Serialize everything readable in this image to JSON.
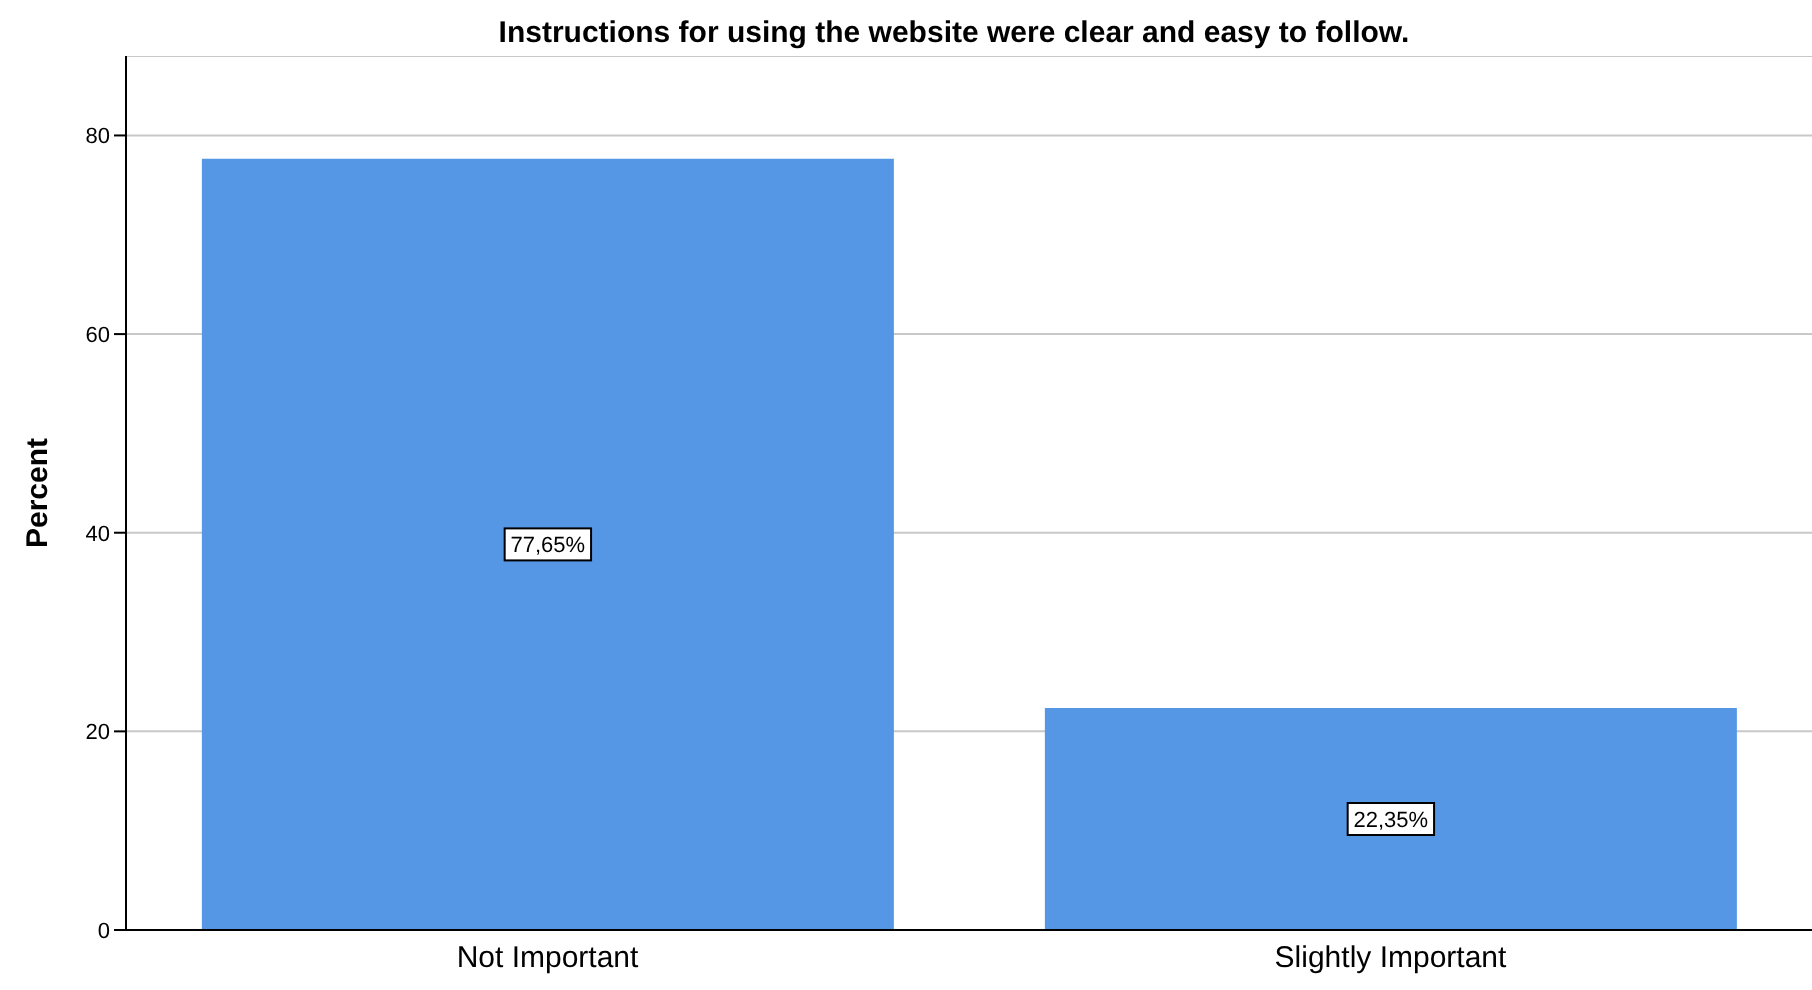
{
  "chart_data": {
    "type": "bar",
    "title": "Instructions for using the website were clear and easy to follow.",
    "ylabel": "Percent",
    "categories": [
      "Not Important",
      "Slightly Important"
    ],
    "values": [
      77.65,
      22.35
    ],
    "value_labels": [
      "77,65%",
      "22,35%"
    ],
    "color": "#5596e5",
    "ylim": [
      0,
      88
    ],
    "yticks": [
      0,
      20,
      40,
      60,
      80
    ],
    "grid": "y"
  }
}
